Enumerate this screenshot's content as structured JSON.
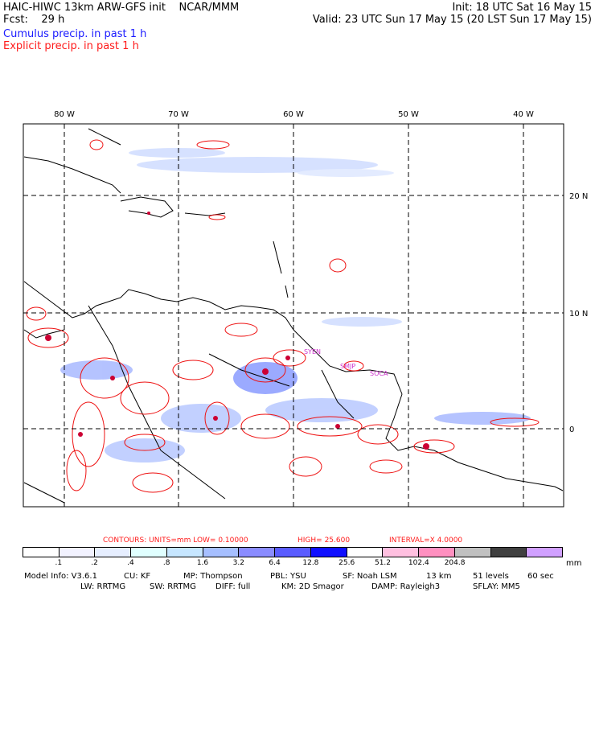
{
  "header": {
    "title": "HAIC-HIWC 13km ARW-GFS init    NCAR/MMM",
    "fcst": "Fcst:    29 h",
    "init": "Init: 18 UTC Sat 16 May 15",
    "valid": "Valid: 23 UTC Sun 17 May 15 (20 LST Sun 17 May 15)",
    "cumulus": "Cumulus precip. in past 1 h",
    "explicit": "Explicit precip. in past 1 h"
  },
  "map": {
    "lon_labels": [
      "80 W",
      "70 W",
      "60 W",
      "50 W",
      "40 W"
    ],
    "lat_labels": [
      "20 N",
      "10 N",
      "0"
    ],
    "station_labels": [
      "SYEN",
      "SMJP",
      "SOCA"
    ]
  },
  "contours": {
    "label": "CONTOURS:  UNITS=mm  LOW= 0.10000",
    "high": "HIGH=  25.600",
    "interval": "INTERVAL=X  4.0000"
  },
  "legend": {
    "colors": [
      "#ffffff",
      "#f2f2ff",
      "#e6eeff",
      "#e0ffff",
      "#c6e6ff",
      "#a6bfff",
      "#8a8cff",
      "#5a5cff",
      "#1010ff",
      "#ffffff",
      "#ffc0e0",
      "#ff90c0",
      "#c0c0c0",
      "#404040",
      "#d0a0ff"
    ],
    "ticks": [
      ".1",
      ".2",
      ".4",
      ".8",
      "1.6",
      "3.2",
      "6.4",
      "12.8",
      "25.6",
      "51.2",
      "102.4",
      "204.8"
    ],
    "unit": "mm"
  },
  "model": {
    "row1": [
      "Model Info: V3.6.1",
      "CU: KF",
      "MP: Thompson",
      "PBL: YSU",
      "SF: Noah LSM",
      "13 km",
      "51 levels",
      "60 sec"
    ],
    "row2": [
      "LW: RRTMG",
      "SW: RRTMG",
      "DIFF: full",
      "KM: 2D Smagor",
      "DAMP: Rayleigh3",
      "SFLAY: MM5"
    ]
  }
}
